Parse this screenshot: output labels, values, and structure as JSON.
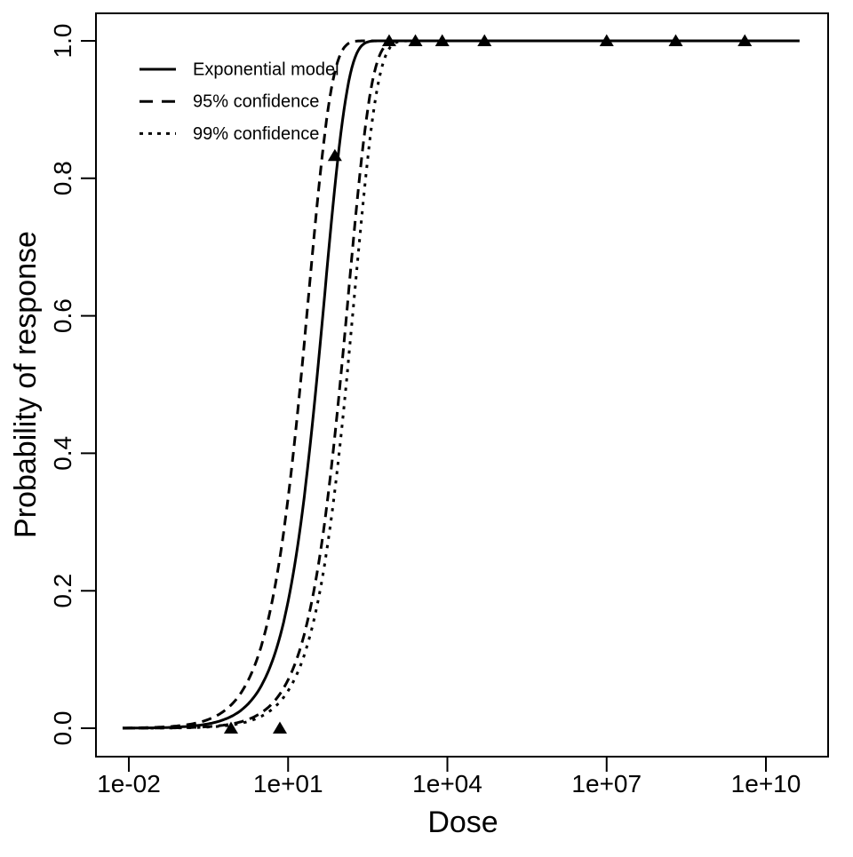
{
  "figure": {
    "background": "#ffffff",
    "foreground": "#000000"
  },
  "chart_data": {
    "type": "line",
    "title": "",
    "xlabel": "Dose",
    "ylabel": "Probability of response",
    "x_scale": "log10",
    "x_range_log10": [
      -2.117,
      10.64
    ],
    "ylim": [
      0,
      1
    ],
    "grid": false,
    "marker": "filled-triangle",
    "legend_position": "top-left",
    "x_ticks": [
      {
        "label": "1e-02",
        "log10": -2
      },
      {
        "label": "1e+01",
        "log10": 1
      },
      {
        "label": "1e+04",
        "log10": 4
      },
      {
        "label": "1e+07",
        "log10": 7
      },
      {
        "label": "1e+10",
        "log10": 10
      }
    ],
    "y_ticks": [
      {
        "label": "0.0",
        "value": 0.0
      },
      {
        "label": "0.2",
        "value": 0.2
      },
      {
        "label": "0.4",
        "value": 0.4
      },
      {
        "label": "0.6",
        "value": 0.6
      },
      {
        "label": "0.8",
        "value": 0.8
      },
      {
        "label": "1.0",
        "value": 1.0
      }
    ],
    "series": [
      {
        "name": "Exponential model",
        "style": "solid",
        "d50": 34
      },
      {
        "name": "95% confidence (lower)",
        "style": "dashed",
        "d50": 17
      },
      {
        "name": "95% confidence (upper)",
        "style": "dashed",
        "d50": 95
      },
      {
        "name": "99% confidence (upper)",
        "style": "dotted",
        "d50": 124
      }
    ],
    "points": [
      {
        "dose": 0.84,
        "p": 0
      },
      {
        "dose": 7,
        "p": 0
      },
      {
        "dose": 76,
        "p": 0.833
      },
      {
        "dose": 800,
        "p": 1
      },
      {
        "dose": 2500,
        "p": 1
      },
      {
        "dose": 8000,
        "p": 1
      },
      {
        "dose": 50000,
        "p": 1
      },
      {
        "dose": 10000000,
        "p": 1
      },
      {
        "dose": 200000000,
        "p": 1
      },
      {
        "dose": 4000000000,
        "p": 1
      }
    ],
    "legend": [
      {
        "label": "Exponential model",
        "style": "solid"
      },
      {
        "label": "95% confidence",
        "style": "dashed"
      },
      {
        "label": "99% confidence",
        "style": "dotted"
      }
    ]
  }
}
